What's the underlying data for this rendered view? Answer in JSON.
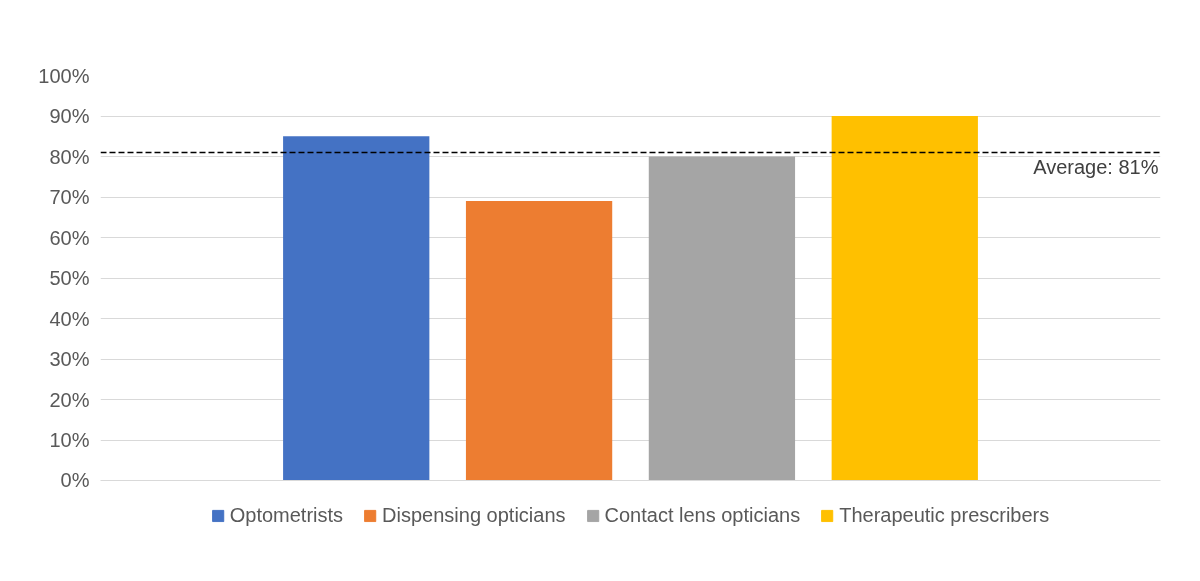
{
  "chart_data": {
    "type": "bar",
    "categories": [
      null
    ],
    "series": [
      {
        "name": "Optometrists",
        "color": "#4472c4",
        "values": [
          85
        ]
      },
      {
        "name": "Dispensing opticians",
        "color": "#ed7d31",
        "values": [
          69
        ]
      },
      {
        "name": "Contact lens opticians",
        "color": "#a5a5a5",
        "values": [
          80
        ]
      },
      {
        "name": "Therapeutic prescribers",
        "color": "#ffc000",
        "values": [
          90
        ]
      }
    ],
    "ylim": [
      0,
      100
    ],
    "yticks": [
      {
        "value": 0,
        "label": "0%"
      },
      {
        "value": 10,
        "label": "10%"
      },
      {
        "value": 20,
        "label": "20%"
      },
      {
        "value": 30,
        "label": "30%"
      },
      {
        "value": 40,
        "label": "40%"
      },
      {
        "value": 50,
        "label": "50%"
      },
      {
        "value": 60,
        "label": "60%"
      },
      {
        "value": 70,
        "label": "70%"
      },
      {
        "value": 80,
        "label": "80%"
      },
      {
        "value": 90,
        "label": "90%"
      },
      {
        "value": 100,
        "label": "100%"
      }
    ],
    "ref_lines": [
      {
        "axis": "y",
        "value": 81,
        "label": "Average: 81%",
        "color": "#000000",
        "line_style": "dashed"
      }
    ],
    "grid": "y",
    "legend": "bottom"
  }
}
